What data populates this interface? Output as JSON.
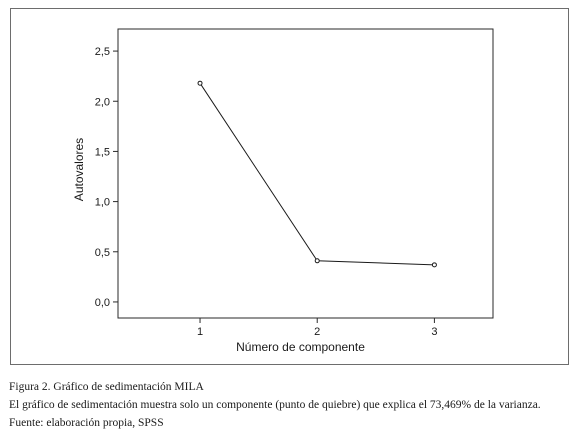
{
  "chart_data": {
    "type": "line",
    "title": "",
    "xlabel": "Número de componente",
    "ylabel": "Autovalores",
    "x": [
      1,
      2,
      3
    ],
    "x_tick_labels": [
      "1",
      "2",
      "3"
    ],
    "y_ticks": [
      0,
      0.5,
      1,
      1.5,
      2,
      2.5
    ],
    "y_tick_labels": [
      "0,0",
      "0,5",
      "1,0",
      "1,5",
      "2,0",
      "2,5"
    ],
    "ylim": [
      -0.16,
      2.72
    ],
    "xlim": [
      0.3,
      3.5
    ],
    "grid": false,
    "series": [
      {
        "values": [
          2.18,
          0.41,
          0.37
        ]
      }
    ],
    "colors": {
      "line": "#1a1a1a",
      "marker_fill": "#ffffff",
      "axis": "#2a2a2a",
      "frame": "#6d6d6d"
    }
  },
  "caption": {
    "title": "Figura 2. Gráfico de sedimentación MILA",
    "description": "El gráfico de sedimentación muestra solo un componente (punto de quiebre) que explica el 73,469% de la varianza.",
    "source": "Fuente: elaboración propia, SPSS"
  }
}
